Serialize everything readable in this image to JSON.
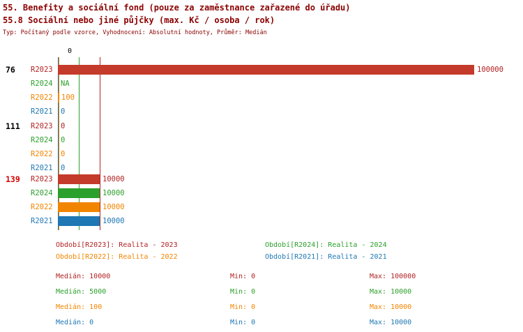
{
  "header": {
    "title_line1": "55. Benefity a sociální fond (pouze za zaměstnance zařazené do úřadu)",
    "title_line2": "55.8 Sociální nebo jiné půjčky (max. Kč / osoba / rok)",
    "meta_line": "Typ: Počítaný podle vzorce, Vyhodnocení: Absolutní hodnoty, Průměr: Medián"
  },
  "colors": {
    "title": "#8b0000",
    "group_label": "#000000",
    "highlight_group": "#d40000",
    "series": {
      "R2023": {
        "bar": "#c43b2b",
        "text": "#b22222"
      },
      "R2024": {
        "bar": "#2ca02c",
        "text": "#2ca02c"
      },
      "R2022": {
        "bar": "#f28500",
        "text": "#f28500"
      },
      "R2021": {
        "bar": "#1f77b4",
        "text": "#1f77b4"
      }
    }
  },
  "chart_data": {
    "type": "bar",
    "orientation": "horizontal",
    "x_axis": {
      "min": 0,
      "max": 100000,
      "tick_label": "0"
    },
    "series_order": [
      "R2023",
      "R2024",
      "R2022",
      "R2021"
    ],
    "groups": [
      {
        "label": "76",
        "highlight": false,
        "rows": [
          {
            "series": "R2023",
            "value": 100000,
            "display": "100000"
          },
          {
            "series": "R2024",
            "value": null,
            "display": "NA"
          },
          {
            "series": "R2022",
            "value": 100,
            "display": "100"
          },
          {
            "series": "R2021",
            "value": 0,
            "display": "0"
          }
        ]
      },
      {
        "label": "111",
        "highlight": false,
        "rows": [
          {
            "series": "R2023",
            "value": 0,
            "display": "0"
          },
          {
            "series": "R2024",
            "value": 0,
            "display": "0"
          },
          {
            "series": "R2022",
            "value": 0,
            "display": "0"
          },
          {
            "series": "R2021",
            "value": 0,
            "display": "0"
          }
        ]
      },
      {
        "label": "139",
        "highlight": true,
        "rows": [
          {
            "series": "R2023",
            "value": 10000,
            "display": "10000"
          },
          {
            "series": "R2024",
            "value": 10000,
            "display": "10000"
          },
          {
            "series": "R2022",
            "value": 10000,
            "display": "10000"
          },
          {
            "series": "R2021",
            "value": 10000,
            "display": "10000"
          }
        ]
      }
    ],
    "median_lines": [
      {
        "series": "R2023",
        "value": 10000
      },
      {
        "series": "R2024",
        "value": 5000
      },
      {
        "series": "R2022",
        "value": 100
      },
      {
        "series": "R2021",
        "value": 0
      }
    ]
  },
  "legend": {
    "items": [
      {
        "series": "R2023",
        "label": "Období[R2023]: Realita - 2023"
      },
      {
        "series": "R2024",
        "label": "Období[R2024]: Realita - 2024"
      },
      {
        "series": "R2022",
        "label": "Období[R2022]: Realita - 2022"
      },
      {
        "series": "R2021",
        "label": "Období[R2021]: Realita - 2021"
      }
    ]
  },
  "stats": {
    "labels": {
      "median": "Medián",
      "min": "Min",
      "max": "Max"
    },
    "rows": [
      {
        "series": "R2023",
        "median": 10000,
        "min": 0,
        "max": 100000
      },
      {
        "series": "R2024",
        "median": 5000,
        "min": 0,
        "max": 10000
      },
      {
        "series": "R2022",
        "median": 100,
        "min": 0,
        "max": 10000
      },
      {
        "series": "R2021",
        "median": 0,
        "min": 0,
        "max": 10000
      }
    ]
  }
}
